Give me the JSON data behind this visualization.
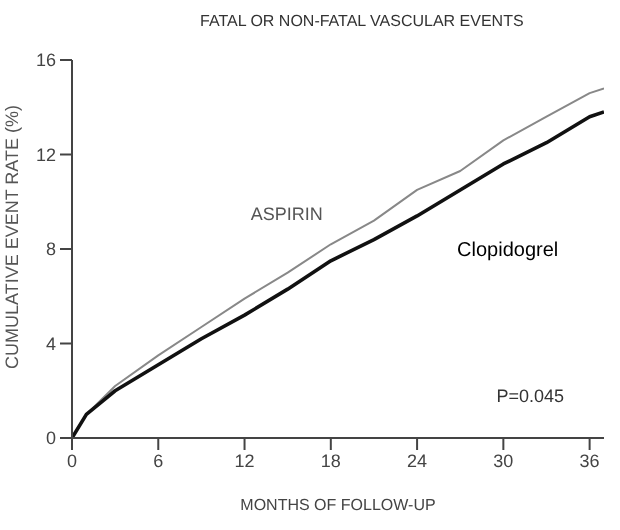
{
  "chart_data": {
    "type": "line",
    "title": "FATAL OR NON-FATAL VASCULAR EVENTS",
    "xlabel": "MONTHS OF FOLLOW-UP",
    "ylabel": "CUMULATIVE EVENT RATE (%)",
    "annotations": [
      "P=0.045"
    ],
    "x": [
      0,
      1,
      2,
      3,
      6,
      9,
      12,
      15,
      18,
      21,
      24,
      27,
      30,
      33,
      36,
      37
    ],
    "series": [
      {
        "name": "ASPIRIN",
        "color": "#888888",
        "values": [
          0,
          1.0,
          1.6,
          2.2,
          3.5,
          4.7,
          5.9,
          7.0,
          8.2,
          9.2,
          10.5,
          11.3,
          12.6,
          13.6,
          14.6,
          14.8
        ]
      },
      {
        "name": "Clopidogrel",
        "color": "#111111",
        "values": [
          0,
          1.0,
          1.5,
          2.0,
          3.1,
          4.2,
          5.2,
          6.3,
          7.5,
          8.4,
          9.4,
          10.5,
          11.6,
          12.5,
          13.6,
          13.8
        ]
      }
    ],
    "xlim": [
      0,
      37
    ],
    "xticks": [
      0,
      6,
      12,
      18,
      24,
      30,
      36
    ],
    "ylim": [
      0,
      16
    ],
    "yticks": [
      0,
      4,
      8,
      12,
      16
    ],
    "grid": false,
    "legend": false,
    "marker": "none",
    "line_style": "solid"
  }
}
